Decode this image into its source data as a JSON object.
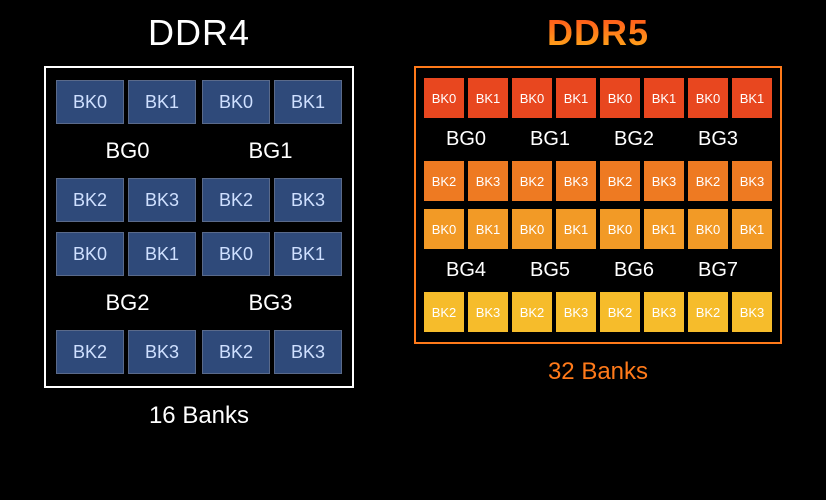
{
  "background_color": "#000000",
  "ddr4": {
    "title": "DDR4",
    "title_color": "#ffffff",
    "frame_border_color": "#ffffff",
    "caption": "16 Banks",
    "caption_color": "#ffffff",
    "bank_cell": {
      "bg": "#2f4a7a",
      "border": "#5a6a8a",
      "text_color": "#cfe0ff",
      "fontsize": 18,
      "width": 68,
      "height": 44
    },
    "bg_label_color": "#ffffff",
    "bg_label_fontsize": 22,
    "groups": [
      {
        "pair": [
          {
            "bg_label": "BG0",
            "top": [
              "BK0",
              "BK1"
            ],
            "bottom": [
              "BK2",
              "BK3"
            ]
          },
          {
            "bg_label": "BG1",
            "top": [
              "BK0",
              "BK1"
            ],
            "bottom": [
              "BK2",
              "BK3"
            ]
          }
        ]
      },
      {
        "pair": [
          {
            "bg_label": "BG2",
            "top": [
              "BK0",
              "BK1"
            ],
            "bottom": [
              "BK2",
              "BK3"
            ]
          },
          {
            "bg_label": "BG3",
            "top": [
              "BK0",
              "BK1"
            ],
            "bottom": [
              "BK2",
              "BK3"
            ]
          }
        ]
      }
    ]
  },
  "ddr5": {
    "title": "DDR5",
    "title_gradient": [
      "#ff4a1a",
      "#ff8a1a",
      "#ffb21a"
    ],
    "frame_border_color": "#ff7a1a",
    "caption": "32 Banks",
    "caption_color": "#ff7a1a",
    "bank_cell": {
      "text_color": "#ffffff",
      "fontsize": 13,
      "width": 40,
      "height": 40
    },
    "bg_label_color": "#ffffff",
    "bg_label_fontsize": 20,
    "rows": [
      {
        "type": "banks",
        "cells": [
          "BK0",
          "BK1",
          "BK0",
          "BK1",
          "BK0",
          "BK1",
          "BK0",
          "BK1"
        ],
        "color": "#e8471f"
      },
      {
        "type": "labels",
        "cells": [
          "BG0",
          "BG1",
          "BG2",
          "BG3"
        ]
      },
      {
        "type": "banks",
        "cells": [
          "BK2",
          "BK3",
          "BK2",
          "BK3",
          "BK2",
          "BK3",
          "BK2",
          "BK3"
        ],
        "color": "#ee7a22"
      },
      {
        "type": "banks",
        "cells": [
          "BK0",
          "BK1",
          "BK0",
          "BK1",
          "BK0",
          "BK1",
          "BK0",
          "BK1"
        ],
        "color": "#f29a26"
      },
      {
        "type": "labels",
        "cells": [
          "BG4",
          "BG5",
          "BG6",
          "BG7"
        ]
      },
      {
        "type": "banks",
        "cells": [
          "BK2",
          "BK3",
          "BK2",
          "BK3",
          "BK2",
          "BK3",
          "BK2",
          "BK3"
        ],
        "color": "#f6bc2b"
      }
    ]
  }
}
